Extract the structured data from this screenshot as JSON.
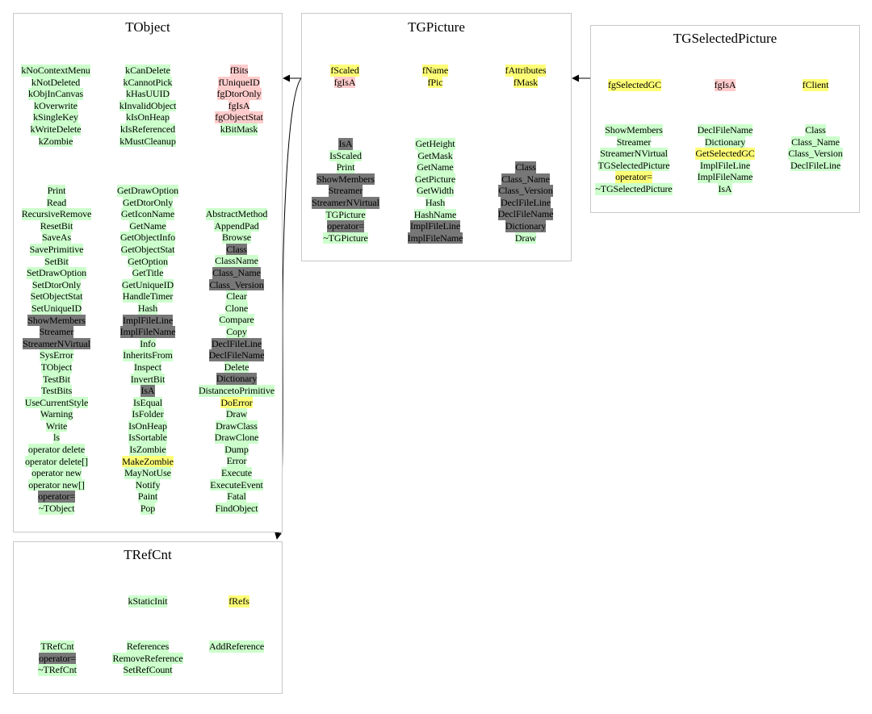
{
  "diagram": {
    "classes": {
      "tobject": {
        "title": "TObject",
        "top_columns": [
          [
            [
              "kNoContextMenu",
              "g"
            ],
            [
              "kNotDeleted",
              "g"
            ],
            [
              "kObjInCanvas",
              "g"
            ],
            [
              "kOverwrite",
              "g"
            ],
            [
              "kSingleKey",
              "g"
            ],
            [
              "kWriteDelete",
              "g"
            ],
            [
              "kZombie",
              "g"
            ]
          ],
          [
            [
              "kCanDelete",
              "g"
            ],
            [
              "kCannotPick",
              "g"
            ],
            [
              "kHasUUID",
              "g"
            ],
            [
              "kInvalidObject",
              "g"
            ],
            [
              "kIsOnHeap",
              "g"
            ],
            [
              "kIsReferenced",
              "g"
            ],
            [
              "kMustCleanup",
              "g"
            ]
          ],
          [
            [
              "fBits",
              "p"
            ],
            [
              "fUniqueID",
              "p"
            ],
            [
              "fgDtorOnly",
              "p"
            ],
            [
              "fgIsA",
              "p"
            ],
            [
              "fgObjectStat",
              "p"
            ],
            [
              "kBitMask",
              "g"
            ]
          ]
        ],
        "method_columns": [
          [
            [
              "Print",
              "g"
            ],
            [
              "Read",
              "g"
            ],
            [
              "RecursiveRemove",
              "g"
            ],
            [
              "ResetBit",
              "g"
            ],
            [
              "SaveAs",
              "g"
            ],
            [
              "SavePrimitive",
              "g"
            ],
            [
              "SetBit",
              "g"
            ],
            [
              "SetDrawOption",
              "g"
            ],
            [
              "SetDtorOnly",
              "g"
            ],
            [
              "SetObjectStat",
              "g"
            ],
            [
              "SetUniqueID",
              "g"
            ],
            [
              "ShowMembers",
              "d"
            ],
            [
              "Streamer",
              "d"
            ],
            [
              "StreamerNVirtual",
              "d"
            ],
            [
              "SysError",
              "g"
            ],
            [
              "TObject",
              "g"
            ],
            [
              "TestBit",
              "g"
            ],
            [
              "TestBits",
              "g"
            ],
            [
              "UseCurrentStyle",
              "g"
            ],
            [
              "Warning",
              "g"
            ],
            [
              "Write",
              "g"
            ],
            [
              "ls",
              "g"
            ],
            [
              "operator delete",
              "g"
            ],
            [
              "operator delete[]",
              "g"
            ],
            [
              "operator new",
              "g"
            ],
            [
              "operator new[]",
              "g"
            ],
            [
              "operator=",
              "d"
            ],
            [
              "~TObject",
              "g"
            ]
          ],
          [
            [
              "GetDrawOption",
              "g"
            ],
            [
              "GetDtorOnly",
              "g"
            ],
            [
              "GetIconName",
              "g"
            ],
            [
              "GetName",
              "g"
            ],
            [
              "GetObjectInfo",
              "g"
            ],
            [
              "GetObjectStat",
              "g"
            ],
            [
              "GetOption",
              "g"
            ],
            [
              "GetTitle",
              "g"
            ],
            [
              "GetUniqueID",
              "g"
            ],
            [
              "HandleTimer",
              "g"
            ],
            [
              "Hash",
              "g"
            ],
            [
              "ImplFileLine",
              "d"
            ],
            [
              "ImplFileName",
              "d"
            ],
            [
              "Info",
              "g"
            ],
            [
              "InheritsFrom",
              "g"
            ],
            [
              "Inspect",
              "g"
            ],
            [
              "InvertBit",
              "g"
            ],
            [
              "IsA",
              "d"
            ],
            [
              "IsEqual",
              "g"
            ],
            [
              "IsFolder",
              "g"
            ],
            [
              "IsOnHeap",
              "g"
            ],
            [
              "IsSortable",
              "g"
            ],
            [
              "IsZombie",
              "g"
            ],
            [
              "MakeZombie",
              "y"
            ],
            [
              "MayNotUse",
              "g"
            ],
            [
              "Notify",
              "g"
            ],
            [
              "Paint",
              "g"
            ],
            [
              "Pop",
              "g"
            ]
          ],
          [
            [
              "AbstractMethod",
              "g"
            ],
            [
              "AppendPad",
              "g"
            ],
            [
              "Browse",
              "g"
            ],
            [
              "Class",
              "d"
            ],
            [
              "ClassName",
              "g"
            ],
            [
              "Class_Name",
              "d"
            ],
            [
              "Class_Version",
              "d"
            ],
            [
              "Clear",
              "g"
            ],
            [
              "Clone",
              "g"
            ],
            [
              "Compare",
              "g"
            ],
            [
              "Copy",
              "g"
            ],
            [
              "DeclFileLine",
              "d"
            ],
            [
              "DeclFileName",
              "d"
            ],
            [
              "Delete",
              "g"
            ],
            [
              "Dictionary",
              "d"
            ],
            [
              "DistancetoPrimitive",
              "g"
            ],
            [
              "DoError",
              "y"
            ],
            [
              "Draw",
              "g"
            ],
            [
              "DrawClass",
              "g"
            ],
            [
              "DrawClone",
              "g"
            ],
            [
              "Dump",
              "g"
            ],
            [
              "Error",
              "g"
            ],
            [
              "Execute",
              "g"
            ],
            [
              "ExecuteEvent",
              "g"
            ],
            [
              "Fatal",
              "g"
            ],
            [
              "FindObject",
              "g"
            ]
          ]
        ]
      },
      "tgpicture": {
        "title": "TGPicture",
        "top_columns": [
          [
            [
              "fScaled",
              "y"
            ],
            [
              "fgIsA",
              "p"
            ]
          ],
          [
            [
              "fName",
              "y"
            ],
            [
              "fPic",
              "y"
            ]
          ],
          [
            [
              "fAttributes",
              "y"
            ],
            [
              "fMask",
              "y"
            ]
          ]
        ],
        "method_columns": [
          [
            [
              "IsA",
              "d"
            ],
            [
              "IsScaled",
              "g"
            ],
            [
              "Print",
              "g"
            ],
            [
              "ShowMembers",
              "d"
            ],
            [
              "Streamer",
              "d"
            ],
            [
              "StreamerNVirtual",
              "d"
            ],
            [
              "TGPicture",
              "g"
            ],
            [
              "operator=",
              "d"
            ],
            [
              "~TGPicture",
              "g"
            ]
          ],
          [
            [
              "GetHeight",
              "g"
            ],
            [
              "GetMask",
              "g"
            ],
            [
              "GetName",
              "g"
            ],
            [
              "GetPicture",
              "g"
            ],
            [
              "GetWidth",
              "g"
            ],
            [
              "Hash",
              "g"
            ],
            [
              "HashName",
              "g"
            ],
            [
              "ImplFileLine",
              "d"
            ],
            [
              "ImplFileName",
              "d"
            ]
          ],
          [
            [
              "Class",
              "d"
            ],
            [
              "Class_Name",
              "d"
            ],
            [
              "Class_Version",
              "d"
            ],
            [
              "DeclFileLine",
              "d"
            ],
            [
              "DeclFileName",
              "d"
            ],
            [
              "Dictionary",
              "d"
            ],
            [
              "Draw",
              "g"
            ]
          ]
        ]
      },
      "tgselectedpicture": {
        "title": "TGSelectedPicture",
        "top_columns": [
          [
            [
              "fgSelectedGC",
              "y"
            ]
          ],
          [
            [
              "fgIsA",
              "p"
            ]
          ],
          [
            [
              "fClient",
              "y"
            ]
          ]
        ],
        "method_columns": [
          [
            [
              "ShowMembers",
              "g"
            ],
            [
              "Streamer",
              "g"
            ],
            [
              "StreamerNVirtual",
              "g"
            ],
            [
              "TGSelectedPicture",
              "g"
            ],
            [
              "operator=",
              "y"
            ],
            [
              "~TGSelectedPicture",
              "g"
            ]
          ],
          [
            [
              "DeclFileName",
              "g"
            ],
            [
              "Dictionary",
              "g"
            ],
            [
              "GetSelectedGC",
              "y"
            ],
            [
              "ImplFileLine",
              "g"
            ],
            [
              "ImplFileName",
              "g"
            ],
            [
              "IsA",
              "g"
            ]
          ],
          [
            [
              "Class",
              "g"
            ],
            [
              "Class_Name",
              "g"
            ],
            [
              "Class_Version",
              "g"
            ],
            [
              "DeclFileLine",
              "g"
            ]
          ]
        ]
      },
      "trefcnt": {
        "title": "TRefCnt",
        "top_columns": [
          [],
          [
            [
              "kStaticInit",
              "g"
            ]
          ],
          [
            [
              "fRefs",
              "y"
            ]
          ]
        ],
        "method_columns": [
          [
            [
              "TRefCnt",
              "g"
            ],
            [
              "operator=",
              "d"
            ],
            [
              "~TRefCnt",
              "g"
            ]
          ],
          [
            [
              "References",
              "g"
            ],
            [
              "RemoveReference",
              "g"
            ],
            [
              "SetRefCount",
              "g"
            ]
          ],
          [
            [
              "AddReference",
              "g"
            ]
          ]
        ]
      }
    }
  }
}
